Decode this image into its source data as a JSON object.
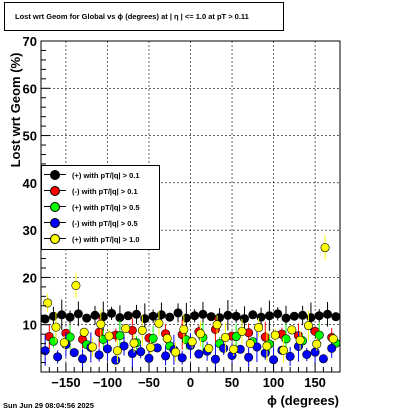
{
  "window": {
    "title": "Lost wrt Geom for Global vs ϕ (degrees) at |  η  | <= 1.0 at pT > 0.11",
    "timestamp": "Sun Jun 29 08:04:56 2025"
  },
  "colors": {
    "black": "#000000",
    "red": "#ff0000",
    "green": "#00ff00",
    "blue": "#0000ff",
    "yellow": "#ffff00"
  },
  "chart_data": {
    "type": "scatter",
    "title": "Lost wrt Geom for Global vs ϕ (degrees) at |  η  | <= 1.0 at pT > 0.11",
    "xlabel": "ϕ (degrees)",
    "ylabel": "Lost wrt Geom (%)",
    "xlim": [
      -180,
      180
    ],
    "ylim": [
      0,
      70
    ],
    "x_ticks": [
      -150,
      -100,
      -50,
      0,
      50,
      100,
      150
    ],
    "y_ticks": [
      10,
      20,
      30,
      40,
      50,
      60,
      70
    ],
    "grid": true,
    "legend_position": "left-middle",
    "series": [
      {
        "name": "(+) with pT/|q| > 0.1",
        "color": "#000000",
        "points": [
          [
            -175,
            11.2
          ],
          [
            -165,
            11.8
          ],
          [
            -155,
            12.1
          ],
          [
            -145,
            11.6
          ],
          [
            -135,
            12.3
          ],
          [
            -125,
            11.4
          ],
          [
            -115,
            12.0
          ],
          [
            -105,
            11.7
          ],
          [
            -95,
            12.4
          ],
          [
            -85,
            11.5
          ],
          [
            -75,
            11.9
          ],
          [
            -65,
            12.2
          ],
          [
            -55,
            11.3
          ],
          [
            -45,
            11.8
          ],
          [
            -35,
            12.1
          ],
          [
            -25,
            11.6
          ],
          [
            -15,
            12.5
          ],
          [
            -5,
            11.4
          ],
          [
            5,
            11.9
          ],
          [
            15,
            12.2
          ],
          [
            25,
            11.7
          ],
          [
            35,
            11.5
          ],
          [
            45,
            12.0
          ],
          [
            55,
            11.8
          ],
          [
            65,
            11.3
          ],
          [
            75,
            12.1
          ],
          [
            85,
            11.6
          ],
          [
            95,
            11.9
          ],
          [
            105,
            12.3
          ],
          [
            115,
            11.4
          ],
          [
            125,
            11.8
          ],
          [
            135,
            12.0
          ],
          [
            145,
            11.5
          ],
          [
            155,
            11.9
          ],
          [
            165,
            12.2
          ],
          [
            175,
            11.7
          ]
        ]
      },
      {
        "name": "(-) with pT/|q| > 0.1",
        "color": "#ff0000",
        "points": [
          [
            -170,
            7.5
          ],
          [
            -150,
            8.2
          ],
          [
            -130,
            6.9
          ],
          [
            -110,
            8.4
          ],
          [
            -90,
            7.8
          ],
          [
            -70,
            8.8
          ],
          [
            -50,
            7.2
          ],
          [
            -30,
            8.1
          ],
          [
            -10,
            7.9
          ],
          [
            10,
            8.5
          ],
          [
            30,
            9.0
          ],
          [
            50,
            7.6
          ],
          [
            70,
            8.3
          ],
          [
            90,
            7.4
          ],
          [
            110,
            8.0
          ],
          [
            130,
            7.7
          ],
          [
            150,
            8.6
          ],
          [
            170,
            7.3
          ]
        ]
      },
      {
        "name": "(+) with pT/|q| > 0.5",
        "color": "#00ff00",
        "points": [
          [
            -165,
            6.5
          ],
          [
            -145,
            7.4
          ],
          [
            -125,
            5.8
          ],
          [
            -105,
            6.9
          ],
          [
            -85,
            7.7
          ],
          [
            -65,
            6.2
          ],
          [
            -45,
            7.1
          ],
          [
            -25,
            5.5
          ],
          [
            -5,
            6.8
          ],
          [
            15,
            7.3
          ],
          [
            35,
            6.0
          ],
          [
            55,
            7.5
          ],
          [
            75,
            6.4
          ],
          [
            95,
            5.9
          ],
          [
            115,
            7.0
          ],
          [
            135,
            6.6
          ],
          [
            155,
            7.8
          ],
          [
            175,
            6.1
          ]
        ]
      },
      {
        "name": "(-) with pT/|q| > 0.5",
        "color": "#0000ff",
        "points": [
          [
            -175,
            4.5
          ],
          [
            -160,
            3.2
          ],
          [
            -150,
            5.8
          ],
          [
            -140,
            4.1
          ],
          [
            -130,
            2.8
          ],
          [
            -120,
            5.2
          ],
          [
            -110,
            3.6
          ],
          [
            -100,
            4.9
          ],
          [
            -90,
            2.5
          ],
          [
            -80,
            5.5
          ],
          [
            -70,
            3.9
          ],
          [
            -60,
            4.3
          ],
          [
            -50,
            2.9
          ],
          [
            -40,
            5.1
          ],
          [
            -30,
            3.4
          ],
          [
            -20,
            4.7
          ],
          [
            -10,
            3.0
          ],
          [
            0,
            5.6
          ],
          [
            10,
            3.8
          ],
          [
            20,
            4.4
          ],
          [
            30,
            2.7
          ],
          [
            40,
            5.0
          ],
          [
            50,
            3.5
          ],
          [
            60,
            4.8
          ],
          [
            70,
            3.1
          ],
          [
            80,
            5.3
          ],
          [
            90,
            4.0
          ],
          [
            100,
            2.6
          ],
          [
            110,
            4.6
          ],
          [
            120,
            3.3
          ],
          [
            130,
            5.4
          ],
          [
            140,
            3.7
          ],
          [
            150,
            4.2
          ],
          [
            160,
            2.8
          ],
          [
            170,
            5.0
          ]
        ]
      },
      {
        "name": "(+) with pT/|q| > 1.0",
        "color": "#ffff00",
        "points": [
          [
            -172,
            14.6
          ],
          [
            -162,
            9.5
          ],
          [
            -152,
            6.2
          ],
          [
            -138,
            18.3
          ],
          [
            -128,
            8.4
          ],
          [
            -118,
            5.3
          ],
          [
            -108,
            10.1
          ],
          [
            -98,
            7.6
          ],
          [
            -88,
            4.5
          ],
          [
            -78,
            9.2
          ],
          [
            -68,
            6.1
          ],
          [
            -58,
            8.8
          ],
          [
            -48,
            5.2
          ],
          [
            -38,
            10.3
          ],
          [
            -28,
            7.1
          ],
          [
            -18,
            4.2
          ],
          [
            -8,
            9.0
          ],
          [
            2,
            6.4
          ],
          [
            12,
            8.1
          ],
          [
            22,
            5.0
          ],
          [
            32,
            10.0
          ],
          [
            42,
            7.3
          ],
          [
            52,
            4.8
          ],
          [
            62,
            8.6
          ],
          [
            72,
            6.0
          ],
          [
            82,
            9.4
          ],
          [
            92,
            5.5
          ],
          [
            102,
            7.8
          ],
          [
            112,
            4.6
          ],
          [
            122,
            8.9
          ],
          [
            132,
            6.7
          ],
          [
            142,
            9.8
          ],
          [
            152,
            5.9
          ],
          [
            162,
            26.3
          ],
          [
            172,
            7.0
          ]
        ]
      }
    ]
  }
}
